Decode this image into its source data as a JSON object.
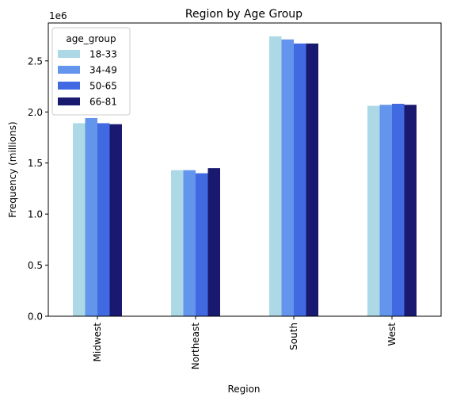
{
  "chart_data": {
    "type": "bar",
    "title": "Region by Age Group",
    "xlabel": "Region",
    "ylabel": "Frequency (millions)",
    "offset_label": "1e6",
    "categories": [
      "Midwest",
      "Northeast",
      "South",
      "West"
    ],
    "legend": {
      "title": "age_group",
      "placement": "top-left"
    },
    "series": [
      {
        "name": "18-33",
        "color": "#ADD8E6",
        "values": [
          1890000,
          1430000,
          2740000,
          2060000
        ]
      },
      {
        "name": "34-49",
        "color": "#6495ED",
        "values": [
          1940000,
          1430000,
          2710000,
          2070000
        ]
      },
      {
        "name": "50-65",
        "color": "#4169E1",
        "values": [
          1890000,
          1400000,
          2670000,
          2080000
        ]
      },
      {
        "name": "66-81",
        "color": "#191970",
        "values": [
          1880000,
          1450000,
          2670000,
          2070000
        ]
      }
    ],
    "ylim": [
      0,
      2871000
    ],
    "yticks": [
      0,
      500000,
      1000000,
      1500000,
      2000000,
      2500000
    ],
    "ytick_labels": [
      "0.0",
      "0.5",
      "1.0",
      "1.5",
      "2.0",
      "2.5"
    ],
    "grid": false
  }
}
